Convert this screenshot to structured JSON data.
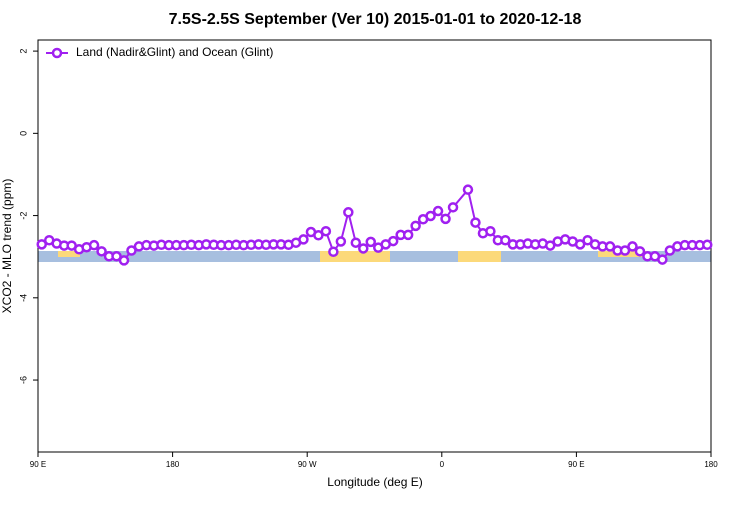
{
  "chart_data": {
    "type": "line",
    "title": "7.5S-2.5S September (Ver 10)   2015-01-01 to 2020-12-18",
    "x_label": "Longitude (deg E)",
    "y_label": "XCO2 - MLO trend (ppm)",
    "x": [
      92.5,
      97.5,
      102.5,
      107.5,
      112.5,
      117.5,
      122.5,
      127.5,
      132.5,
      137.5,
      142.5,
      147.5,
      152.5,
      157.5,
      162.5,
      167.5,
      172.5,
      177.5,
      182.5,
      187.5,
      192.5,
      197.5,
      202.5,
      207.5,
      212.5,
      217.5,
      222.5,
      227.5,
      232.5,
      237.5,
      242.5,
      247.5,
      252.5,
      257.5,
      262.5,
      267.5,
      272.5,
      277.5,
      282.5,
      287.5,
      292.5,
      297.5,
      302.5,
      307.5,
      312.5,
      317.5,
      322.5,
      327.5,
      332.5,
      337.5,
      342.5,
      347.5,
      352.5,
      357.5,
      362.5,
      367.5,
      377.5,
      382.5,
      387.5,
      392.5,
      397.5,
      402.5,
      407.5,
      412.5,
      417.5,
      422.5,
      427.5,
      432.5,
      437.5,
      442.5,
      447.5,
      452.5,
      457.5,
      462.5,
      467.5,
      472.5,
      477.5,
      482.5,
      487.5,
      492.5,
      497.5,
      502.5,
      507.5,
      512.5,
      517.5,
      522.5,
      527.5,
      532.5,
      537.5
    ],
    "series": [
      {
        "name": "Land (Nadir&Glint) and Ocean (Glint)",
        "color": "#a020f0",
        "values": [
          -2.7,
          -2.6,
          -2.68,
          -2.73,
          -2.73,
          -2.82,
          -2.77,
          -2.72,
          -2.87,
          -2.99,
          -2.99,
          -3.09,
          -2.85,
          -2.75,
          -2.72,
          -2.73,
          -2.71,
          -2.72,
          -2.72,
          -2.72,
          -2.71,
          -2.72,
          -2.7,
          -2.71,
          -2.72,
          -2.72,
          -2.71,
          -2.72,
          -2.71,
          -2.7,
          -2.71,
          -2.7,
          -2.7,
          -2.71,
          -2.66,
          -2.58,
          -2.4,
          -2.48,
          -2.38,
          -2.88,
          -2.63,
          -1.92,
          -2.66,
          -2.8,
          -2.64,
          -2.78,
          -2.7,
          -2.62,
          -2.47,
          -2.47,
          -2.25,
          -2.09,
          -2.01,
          -1.89,
          -2.08,
          -1.8,
          -1.37,
          -2.17,
          -2.43,
          -2.38,
          -2.6,
          -2.6,
          -2.7,
          -2.7,
          -2.68,
          -2.7,
          -2.68,
          -2.73,
          -2.63,
          -2.58,
          -2.63,
          -2.7,
          -2.6,
          -2.7,
          -2.75,
          -2.75,
          -2.85,
          -2.85,
          -2.75,
          -2.87,
          -2.99,
          -2.99,
          -3.07,
          -2.85,
          -2.75,
          -2.72,
          -2.72,
          -2.72,
          -2.71
        ]
      }
    ],
    "xlim": [
      90,
      540
    ],
    "xticks": [
      {
        "value": 90,
        "label": "90 E"
      },
      180,
      {
        "value": 270,
        "label": "90 W"
      },
      {
        "value": 360,
        "label": "0"
      },
      {
        "value": 450,
        "label": "90 E"
      },
      {
        "value": 540,
        "label": "180"
      }
    ],
    "ylim": [
      -7.75,
      2.27
    ],
    "yticks": [
      -6,
      -4,
      -2,
      0,
      2
    ],
    "legend": "top-left"
  }
}
